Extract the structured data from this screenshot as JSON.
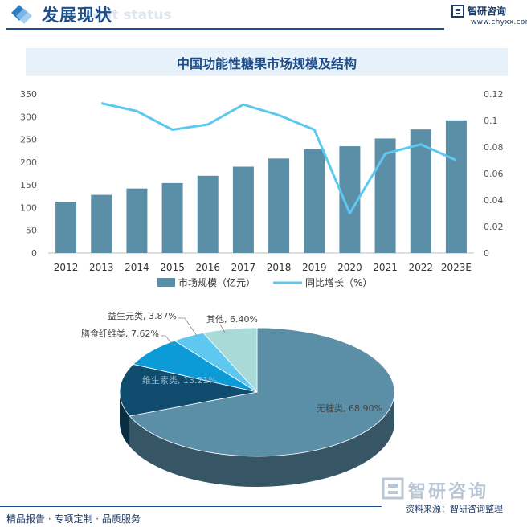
{
  "header": {
    "title": "发展现状",
    "ghost_text": "ment status",
    "brand": "智研咨询",
    "url": "www.chyxx.com"
  },
  "chart_data": [
    {
      "type": "bar",
      "title": "中国功能性糖果市场规模及结构",
      "categories": [
        "2012",
        "2013",
        "2014",
        "2015",
        "2016",
        "2017",
        "2018",
        "2019",
        "2020",
        "2021",
        "2022",
        "2023E"
      ],
      "series": [
        {
          "name": "市场规模（亿元）",
          "type": "bar",
          "axis": "left",
          "color": "#5b8fa8",
          "values": [
            113,
            128,
            142,
            154,
            170,
            190,
            208,
            228,
            235,
            252,
            272,
            292
          ]
        },
        {
          "name": "同比增长（%）",
          "type": "line",
          "axis": "right",
          "color": "#5ec8f0",
          "values": [
            null,
            0.113,
            0.107,
            0.093,
            0.097,
            0.112,
            0.104,
            0.093,
            0.03,
            0.075,
            0.082,
            0.07
          ]
        }
      ],
      "ylim_left": [
        0,
        350
      ],
      "yticks_left": [
        "0",
        "50",
        "100",
        "150",
        "200",
        "250",
        "300",
        "350"
      ],
      "ylim_right": [
        0,
        0.12
      ],
      "yticks_right": [
        "0",
        "0.02",
        "0.04",
        "0.06",
        "0.08",
        "0.1",
        "0.12"
      ],
      "legend_position": "bottom"
    },
    {
      "type": "pie",
      "slices": [
        {
          "label": "无糖类, 68.90%",
          "value": 68.9,
          "color": "#5b8fa8"
        },
        {
          "label": "维生素类, 13.21%",
          "value": 13.21,
          "color": "#0f4c6e"
        },
        {
          "label": "膳食纤维类, 7.62%",
          "value": 7.62,
          "color": "#0d9bd8"
        },
        {
          "label": "益生元类, 3.87%",
          "value": 3.87,
          "color": "#5ec8f0"
        },
        {
          "label": "其他, 6.40%",
          "value": 6.4,
          "color": "#a8dad8"
        }
      ]
    }
  ],
  "footer": {
    "left": "精品报告 · 专项定制 · 品质服务",
    "right": "资料来源：智研咨询整理",
    "logo": "智研咨询"
  }
}
